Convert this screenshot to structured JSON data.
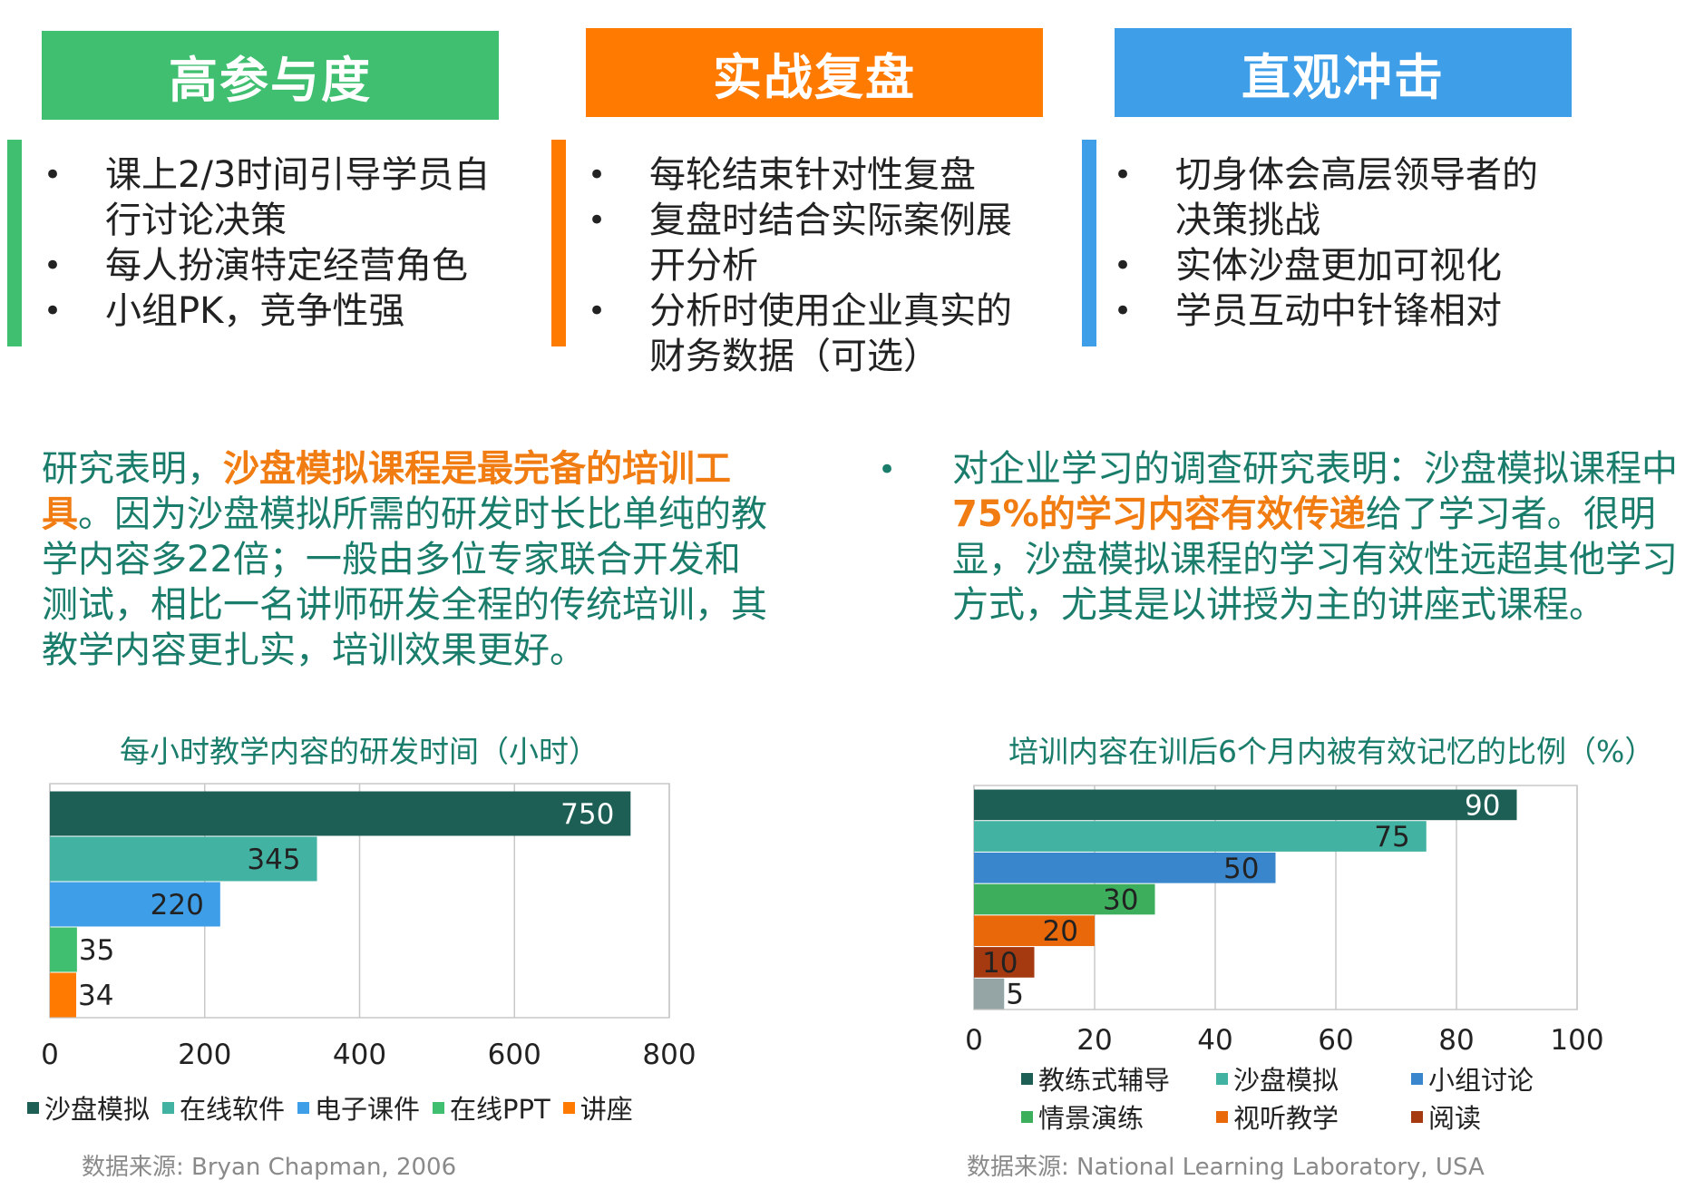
{
  "colors": {
    "green": "#3fbf6f",
    "orange": "#ff7a00",
    "blue": "#3f9ee8",
    "teal_text": "#1a7d6b",
    "highlight": "#f07c12"
  },
  "headers": [
    {
      "label": "高参与度"
    },
    {
      "label": "实战复盘"
    },
    {
      "label": "直观冲击"
    }
  ],
  "columns": [
    {
      "bullets": [
        "课上2/3时间引导学员自行讨论决策",
        "每人扮演特定经营角色",
        "小组PK，竞争性强"
      ]
    },
    {
      "bullets": [
        "每轮结束针对性复盘",
        "复盘时结合实际案例展开分析",
        "分析时使用企业真实的财务数据（可选）"
      ]
    },
    {
      "bullets": [
        "切身体会高层领导者的决策挑战",
        "实体沙盘更加可视化",
        "学员互动中针锋相对"
      ]
    }
  ],
  "left_para": {
    "p1": "研究表明，",
    "p2": "沙盘模拟课程是最完备的培训工具",
    "p3": "。因为沙盘模拟所需的研发时长比单纯的教学内容多22倍；一般由多位专家联合开发和测试，相比一名讲师研发全程的传统培训，其教学内容更扎实，培训效果更好。"
  },
  "right_para": {
    "p1": "对企业学习的调查研究表明：沙盘模拟课程中",
    "p2": "75%的学习内容有效传递",
    "p3": "给了学习者。很明显，沙盘模拟课程的学习有效性远超其他学习方式，尤其是以讲授为主的讲座式课程。"
  },
  "left_source": "数据来源: Bryan Chapman, 2006",
  "right_source": "数据来源: National Learning Laboratory, USA",
  "chart_data": [
    {
      "type": "bar",
      "orientation": "horizontal",
      "title": "每小时教学内容的研发时间（小时）",
      "categories": [
        "沙盘模拟",
        "在线软件",
        "电子课件",
        "在线PPT",
        "讲座"
      ],
      "values": [
        750,
        345,
        220,
        35,
        34
      ],
      "colors": [
        "#1e5f55",
        "#42b3a2",
        "#3f9ee8",
        "#3fbf6f",
        "#ff7a00"
      ],
      "xlim": [
        0,
        800
      ],
      "xticks": [
        0,
        200,
        400,
        600,
        800
      ],
      "grid": true,
      "legend": "bottom"
    },
    {
      "type": "bar",
      "orientation": "horizontal",
      "title": "培训内容在训后6个月内被有效记忆的比例（%）",
      "categories": [
        "教练式辅导",
        "沙盘模拟",
        "小组讨论",
        "情景演练",
        "视听教学",
        "阅读",
        ""
      ],
      "values": [
        90,
        75,
        50,
        30,
        20,
        10,
        5
      ],
      "colors": [
        "#1e5f55",
        "#42b3a2",
        "#3a86cc",
        "#3cae5c",
        "#e8680a",
        "#a53a10",
        "#95a5a6"
      ],
      "xlim": [
        0,
        100
      ],
      "xticks": [
        0,
        20,
        40,
        60,
        80,
        100
      ],
      "grid": true,
      "legend": "bottom"
    }
  ]
}
